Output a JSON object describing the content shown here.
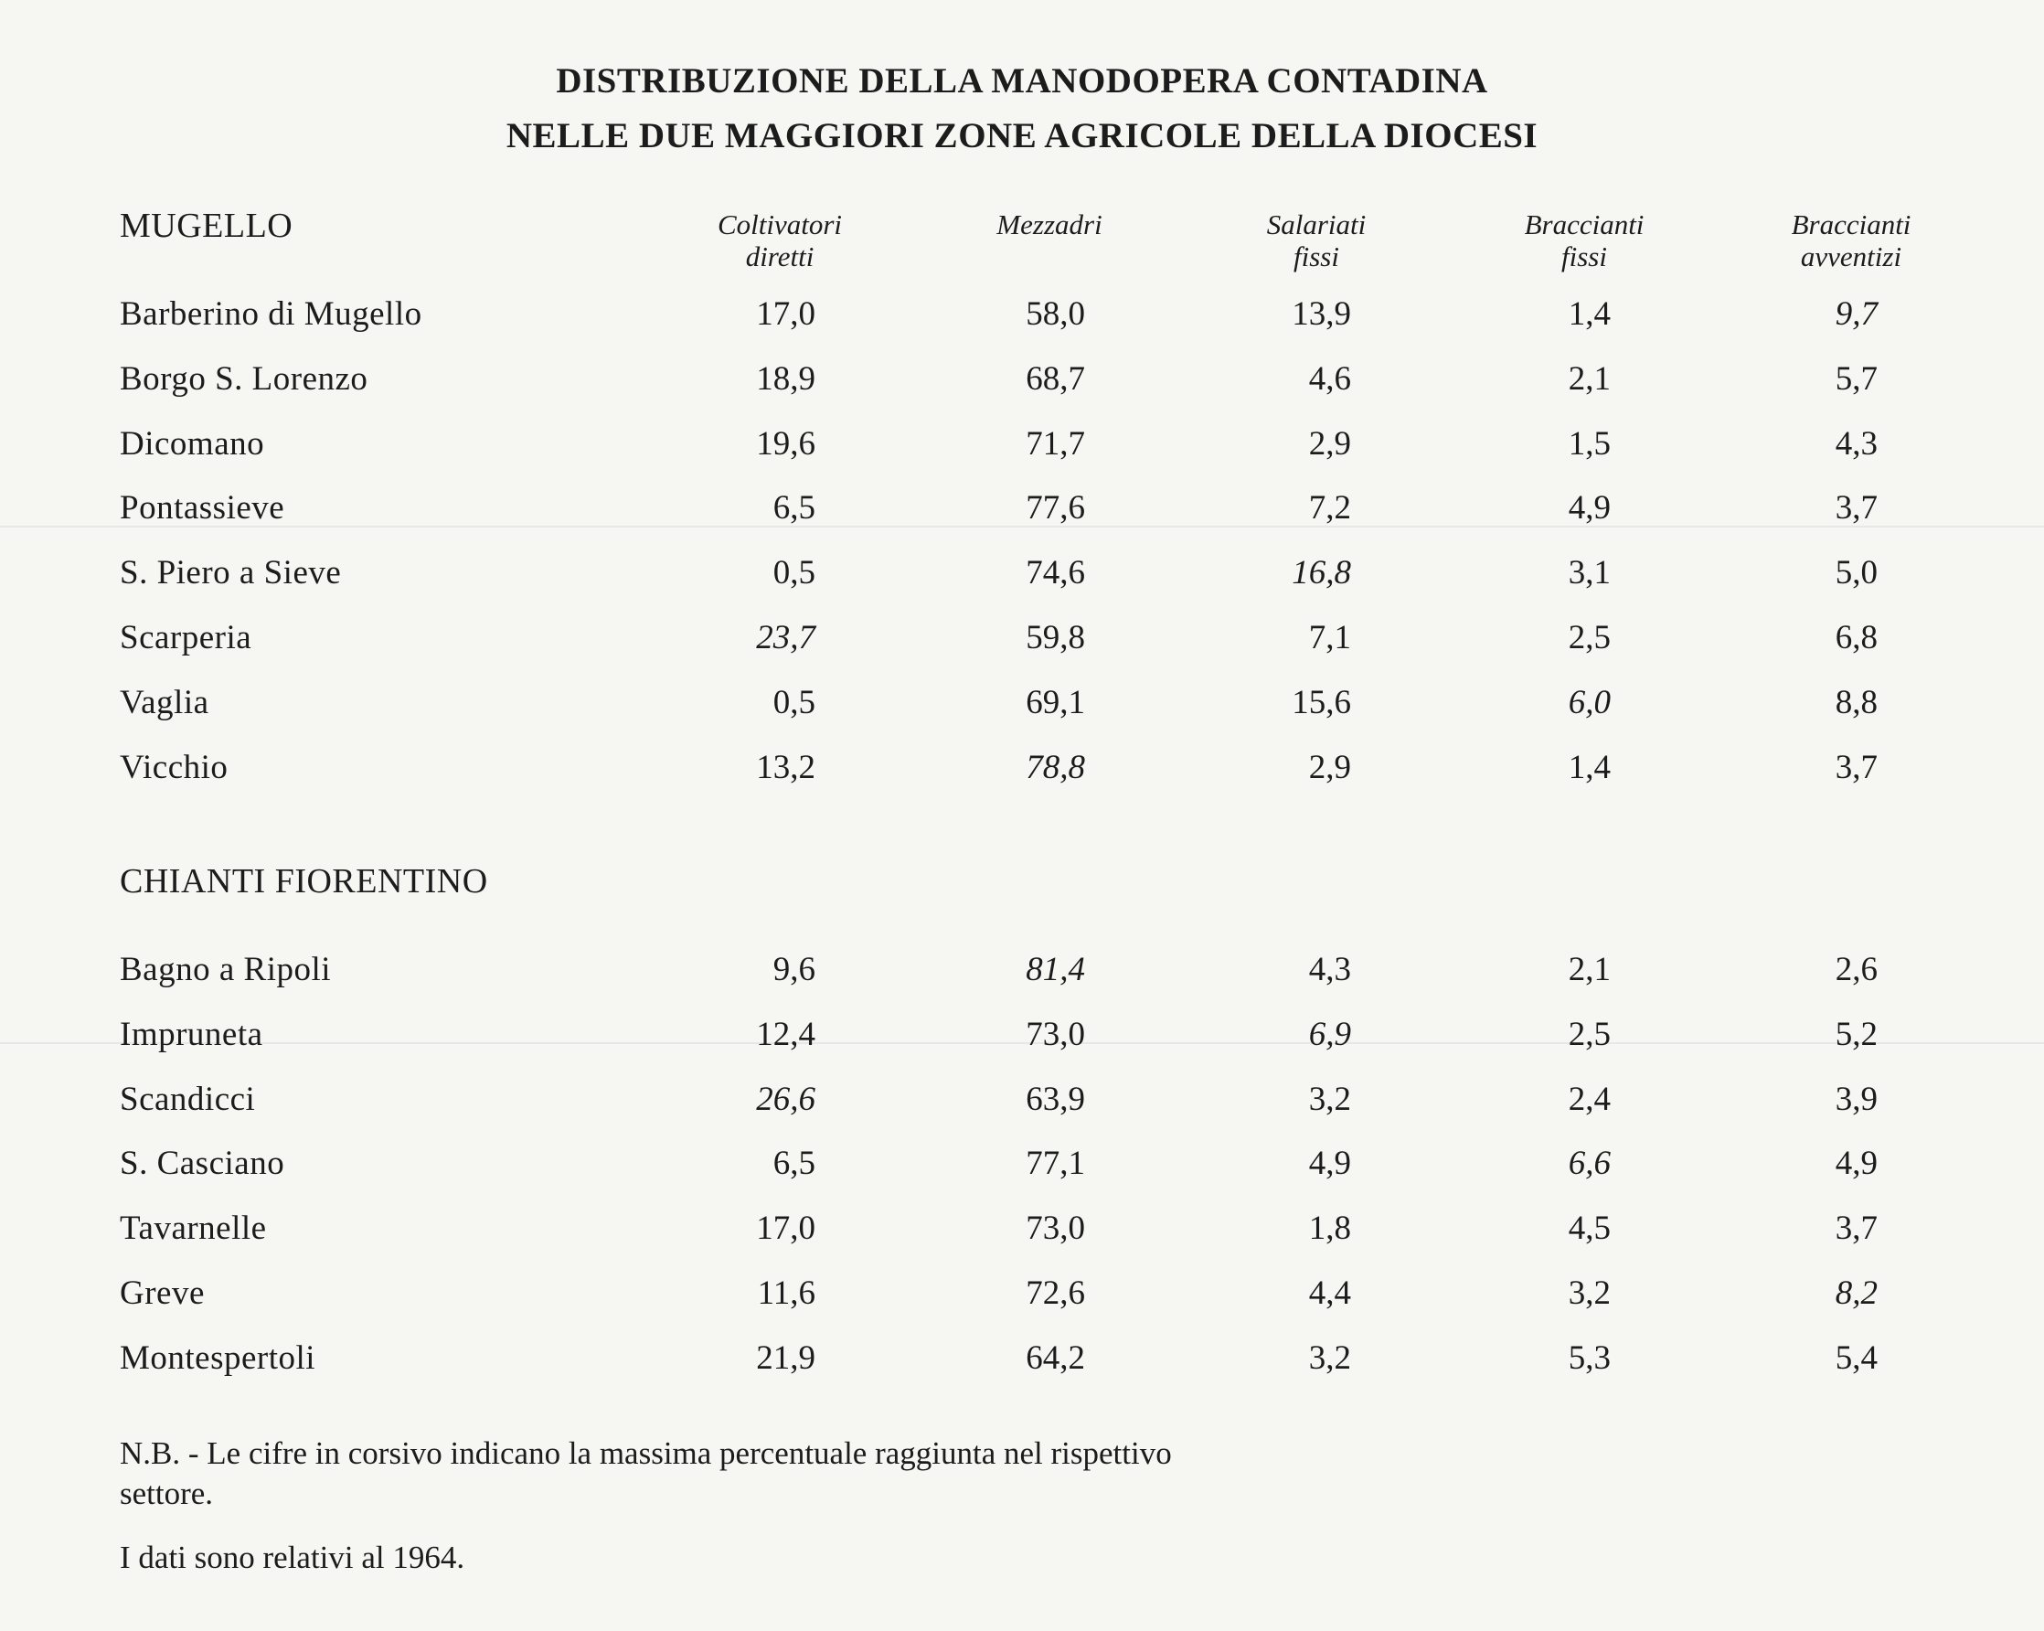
{
  "title": [
    "DISTRIBUZIONE DELLA MANODOPERA CONTADINA",
    "NELLE DUE MAGGIORI ZONE AGRICOLE DELLA DIOCESI"
  ],
  "columns": [
    [
      "Coltivatori",
      "diretti"
    ],
    [
      "Mezzadri",
      ""
    ],
    [
      "Salariati",
      "fissi"
    ],
    [
      "Braccianti",
      "fissi"
    ],
    [
      "Braccianti",
      "avventizi"
    ]
  ],
  "sections": [
    {
      "name": "MUGELLO",
      "rows": [
        {
          "name": "Barberino di Mugello",
          "values": [
            "17,0",
            "58,0",
            "13,9",
            "1,4",
            "9,7"
          ],
          "italic": [
            false,
            false,
            false,
            false,
            true
          ]
        },
        {
          "name": "Borgo S. Lorenzo",
          "values": [
            "18,9",
            "68,7",
            "4,6",
            "2,1",
            "5,7"
          ],
          "italic": [
            false,
            false,
            false,
            false,
            false
          ]
        },
        {
          "name": "Dicomano",
          "values": [
            "19,6",
            "71,7",
            "2,9",
            "1,5",
            "4,3"
          ],
          "italic": [
            false,
            false,
            false,
            false,
            false
          ]
        },
        {
          "name": "Pontassieve",
          "values": [
            "6,5",
            "77,6",
            "7,2",
            "4,9",
            "3,7"
          ],
          "italic": [
            false,
            false,
            false,
            false,
            false
          ]
        },
        {
          "name": "S. Piero a Sieve",
          "values": [
            "0,5",
            "74,6",
            "16,8",
            "3,1",
            "5,0"
          ],
          "italic": [
            false,
            false,
            true,
            false,
            false
          ]
        },
        {
          "name": "Scarperia",
          "values": [
            "23,7",
            "59,8",
            "7,1",
            "2,5",
            "6,8"
          ],
          "italic": [
            true,
            false,
            false,
            false,
            false
          ]
        },
        {
          "name": "Vaglia",
          "values": [
            "0,5",
            "69,1",
            "15,6",
            "6,0",
            "8,8"
          ],
          "italic": [
            false,
            false,
            false,
            true,
            false
          ]
        },
        {
          "name": "Vicchio",
          "values": [
            "13,2",
            "78,8",
            "2,9",
            "1,4",
            "3,7"
          ],
          "italic": [
            false,
            true,
            false,
            false,
            false
          ]
        }
      ]
    },
    {
      "name": "CHIANTI FIORENTINO",
      "rows": [
        {
          "name": "Bagno a Ripoli",
          "values": [
            "9,6",
            "81,4",
            "4,3",
            "2,1",
            "2,6"
          ],
          "italic": [
            false,
            true,
            false,
            false,
            false
          ]
        },
        {
          "name": "Impruneta",
          "values": [
            "12,4",
            "73,0",
            "6,9",
            "2,5",
            "5,2"
          ],
          "italic": [
            false,
            false,
            true,
            false,
            false
          ]
        },
        {
          "name": "Scandicci",
          "values": [
            "26,6",
            "63,9",
            "3,2",
            "2,4",
            "3,9"
          ],
          "italic": [
            true,
            false,
            false,
            false,
            false
          ]
        },
        {
          "name": "S. Casciano",
          "values": [
            "6,5",
            "77,1",
            "4,9",
            "6,6",
            "4,9"
          ],
          "italic": [
            false,
            false,
            false,
            true,
            false
          ]
        },
        {
          "name": "Tavarnelle",
          "values": [
            "17,0",
            "73,0",
            "1,8",
            "4,5",
            "3,7"
          ],
          "italic": [
            false,
            false,
            false,
            false,
            false
          ]
        },
        {
          "name": "Greve",
          "values": [
            "11,6",
            "72,6",
            "4,4",
            "3,2",
            "8,2"
          ],
          "italic": [
            false,
            false,
            false,
            false,
            true
          ]
        },
        {
          "name": "Montespertoli",
          "values": [
            "21,9",
            "64,2",
            "3,2",
            "5,3",
            "5,4"
          ],
          "italic": [
            false,
            false,
            false,
            false,
            false
          ]
        }
      ]
    }
  ],
  "notes": {
    "nb_line1": "N.B. - Le cifre in corsivo indicano la massima percentuale raggiunta nel rispettivo",
    "nb_line2": "settore.",
    "date_note": "I dati sono relativi al 1964."
  }
}
